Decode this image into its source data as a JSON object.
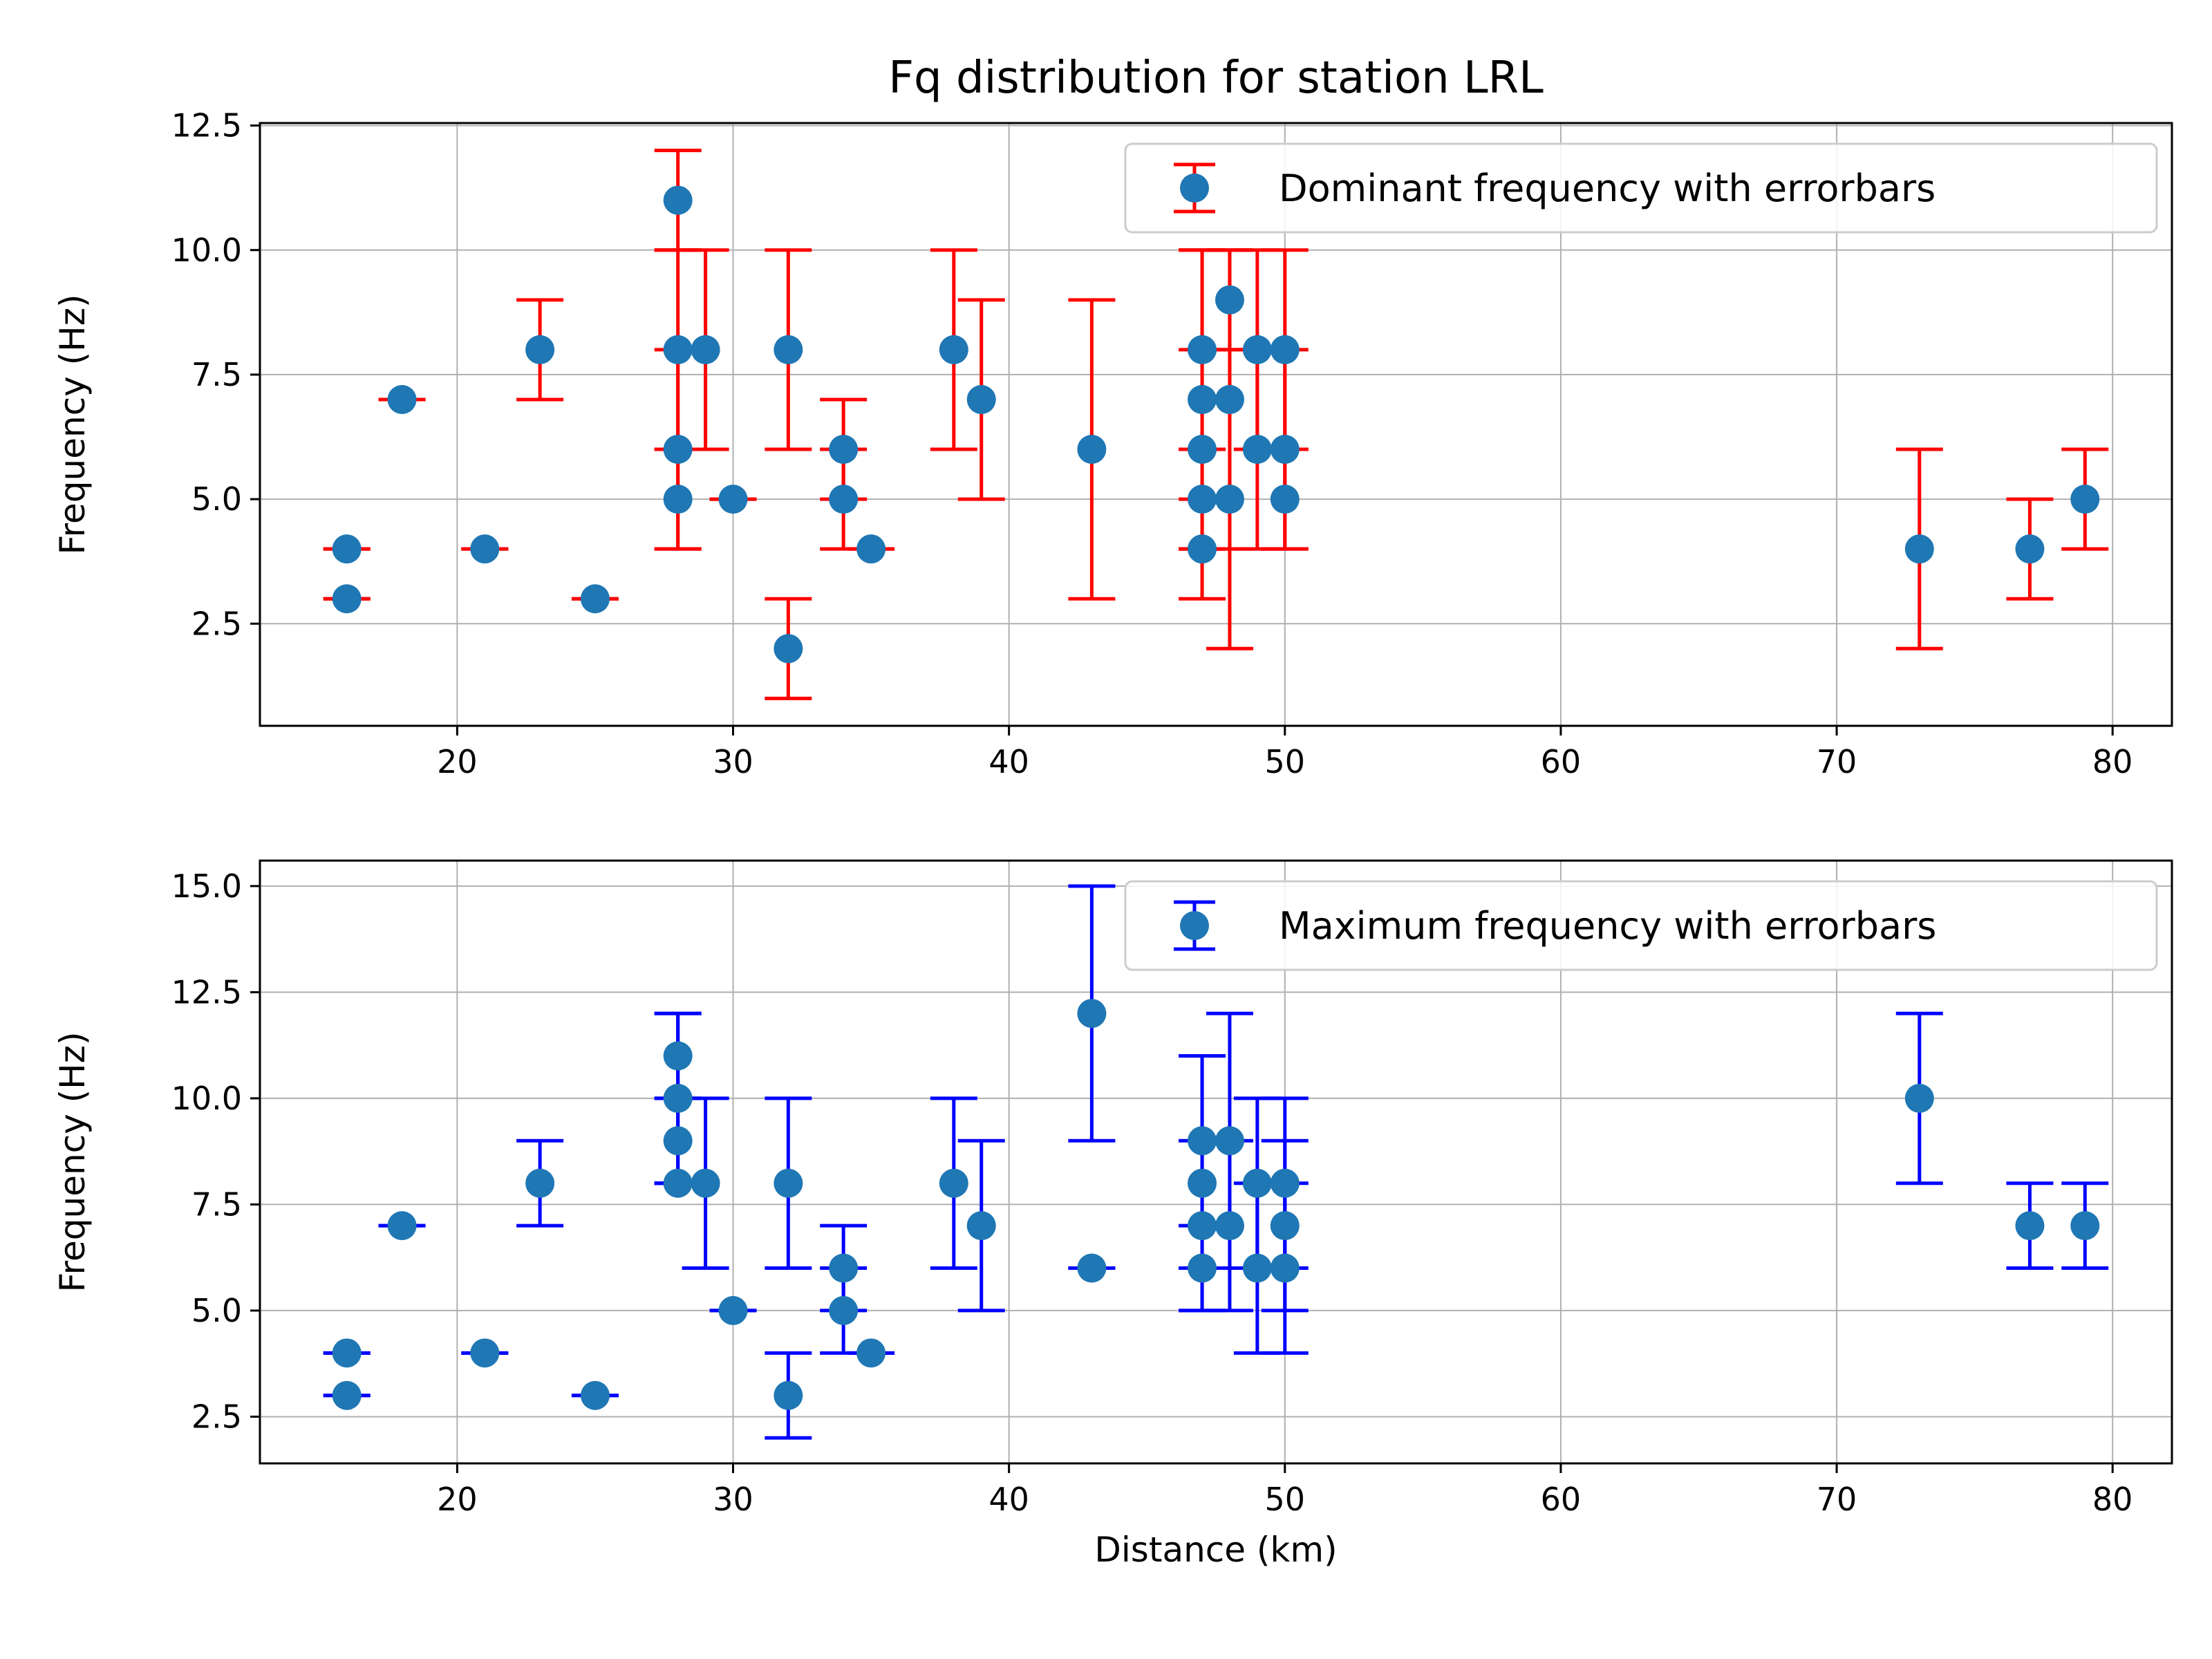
{
  "chart_data": [
    {
      "type": "scatter",
      "title": "Fq distribution for station LRL",
      "xlabel": "",
      "ylabel": "Frequency (Hz)",
      "xlim": [
        12.85,
        82.15
      ],
      "ylim": [
        0.45,
        12.55
      ],
      "xticks": [
        "20",
        "30",
        "40",
        "50",
        "60",
        "70",
        "80"
      ],
      "yticks": [
        "2.5",
        "5.0",
        "7.5",
        "10.0",
        "12.5"
      ],
      "grid": true,
      "legend_position": "top-right",
      "marker_color": "#1f77b4",
      "errorbar_color": "#ff0000",
      "series": [
        {
          "name": "Dominant frequency with errorbars",
          "points": [
            {
              "x": 16,
              "y": 4,
              "lo": 4,
              "hi": 4
            },
            {
              "x": 16,
              "y": 3,
              "lo": 3,
              "hi": 3
            },
            {
              "x": 18,
              "y": 7,
              "lo": 7,
              "hi": 7
            },
            {
              "x": 21,
              "y": 4,
              "lo": 4,
              "hi": 4
            },
            {
              "x": 23,
              "y": 8,
              "lo": 7,
              "hi": 9
            },
            {
              "x": 25,
              "y": 3,
              "lo": 3,
              "hi": 3
            },
            {
              "x": 28,
              "y": 11,
              "lo": 10,
              "hi": 12
            },
            {
              "x": 28,
              "y": 8,
              "lo": 6,
              "hi": 10
            },
            {
              "x": 28,
              "y": 6,
              "lo": 4,
              "hi": 8
            },
            {
              "x": 28,
              "y": 5,
              "lo": 4,
              "hi": 6
            },
            {
              "x": 29,
              "y": 8,
              "lo": 6,
              "hi": 10
            },
            {
              "x": 30,
              "y": 5,
              "lo": 5,
              "hi": 5
            },
            {
              "x": 32,
              "y": 8,
              "lo": 6,
              "hi": 10
            },
            {
              "x": 32,
              "y": 2,
              "lo": 1,
              "hi": 3
            },
            {
              "x": 34,
              "y": 6,
              "lo": 5,
              "hi": 7
            },
            {
              "x": 34,
              "y": 5,
              "lo": 4,
              "hi": 6
            },
            {
              "x": 35,
              "y": 4,
              "lo": 4,
              "hi": 4
            },
            {
              "x": 38,
              "y": 8,
              "lo": 6,
              "hi": 10
            },
            {
              "x": 39,
              "y": 7,
              "lo": 5,
              "hi": 9
            },
            {
              "x": 43,
              "y": 6,
              "lo": 3,
              "hi": 9
            },
            {
              "x": 47,
              "y": 8,
              "lo": 6,
              "hi": 10
            },
            {
              "x": 47,
              "y": 7,
              "lo": 4,
              "hi": 10
            },
            {
              "x": 47,
              "y": 6,
              "lo": 4,
              "hi": 8
            },
            {
              "x": 47,
              "y": 5,
              "lo": 4,
              "hi": 6
            },
            {
              "x": 47,
              "y": 4,
              "lo": 3,
              "hi": 5
            },
            {
              "x": 48,
              "y": 9,
              "lo": 8,
              "hi": 10
            },
            {
              "x": 48,
              "y": 7,
              "lo": 4,
              "hi": 10
            },
            {
              "x": 48,
              "y": 5,
              "lo": 2,
              "hi": 8
            },
            {
              "x": 49,
              "y": 8,
              "lo": 6,
              "hi": 10
            },
            {
              "x": 49,
              "y": 6,
              "lo": 4,
              "hi": 8
            },
            {
              "x": 50,
              "y": 8,
              "lo": 6,
              "hi": 10
            },
            {
              "x": 50,
              "y": 6,
              "lo": 4,
              "hi": 8
            },
            {
              "x": 50,
              "y": 5,
              "lo": 4,
              "hi": 6
            },
            {
              "x": 73,
              "y": 4,
              "lo": 2,
              "hi": 6
            },
            {
              "x": 77,
              "y": 4,
              "lo": 3,
              "hi": 5
            },
            {
              "x": 79,
              "y": 5,
              "lo": 4,
              "hi": 6
            }
          ]
        }
      ]
    },
    {
      "type": "scatter",
      "title": "",
      "xlabel": "Distance (km)",
      "ylabel": "Frequency (Hz)",
      "xlim": [
        12.85,
        82.15
      ],
      "ylim": [
        1.4,
        15.6
      ],
      "xticks": [
        "20",
        "30",
        "40",
        "50",
        "60",
        "70",
        "80"
      ],
      "yticks": [
        "2.5",
        "5.0",
        "7.5",
        "10.0",
        "12.5",
        "15.0"
      ],
      "grid": true,
      "legend_position": "top-right",
      "marker_color": "#1f77b4",
      "errorbar_color": "#0000ff",
      "series": [
        {
          "name": "Maximum frequency with errorbars",
          "points": [
            {
              "x": 16,
              "y": 4,
              "lo": 4,
              "hi": 4
            },
            {
              "x": 16,
              "y": 3,
              "lo": 3,
              "hi": 3
            },
            {
              "x": 18,
              "y": 7,
              "lo": 7,
              "hi": 7
            },
            {
              "x": 21,
              "y": 4,
              "lo": 4,
              "hi": 4
            },
            {
              "x": 23,
              "y": 8,
              "lo": 7,
              "hi": 9
            },
            {
              "x": 25,
              "y": 3,
              "lo": 3,
              "hi": 3
            },
            {
              "x": 28,
              "y": 11,
              "lo": 10,
              "hi": 12
            },
            {
              "x": 28,
              "y": 10,
              "lo": 8,
              "hi": 12
            },
            {
              "x": 28,
              "y": 9,
              "lo": 8,
              "hi": 10
            },
            {
              "x": 28,
              "y": 8,
              "lo": 8,
              "hi": 8
            },
            {
              "x": 29,
              "y": 8,
              "lo": 6,
              "hi": 10
            },
            {
              "x": 30,
              "y": 5,
              "lo": 5,
              "hi": 5
            },
            {
              "x": 32,
              "y": 8,
              "lo": 6,
              "hi": 10
            },
            {
              "x": 32,
              "y": 3,
              "lo": 2,
              "hi": 4
            },
            {
              "x": 34,
              "y": 6,
              "lo": 5,
              "hi": 7
            },
            {
              "x": 34,
              "y": 5,
              "lo": 4,
              "hi": 6
            },
            {
              "x": 35,
              "y": 4,
              "lo": 4,
              "hi": 4
            },
            {
              "x": 38,
              "y": 8,
              "lo": 6,
              "hi": 10
            },
            {
              "x": 39,
              "y": 7,
              "lo": 5,
              "hi": 9
            },
            {
              "x": 43,
              "y": 12,
              "lo": 9,
              "hi": 15
            },
            {
              "x": 43,
              "y": 6,
              "lo": 6,
              "hi": 6
            },
            {
              "x": 47,
              "y": 9,
              "lo": 7,
              "hi": 11
            },
            {
              "x": 47,
              "y": 8,
              "lo": 5,
              "hi": 11
            },
            {
              "x": 47,
              "y": 7,
              "lo": 5,
              "hi": 9
            },
            {
              "x": 47,
              "y": 6,
              "lo": 6,
              "hi": 6
            },
            {
              "x": 48,
              "y": 9,
              "lo": 6,
              "hi": 12
            },
            {
              "x": 48,
              "y": 7,
              "lo": 5,
              "hi": 9
            },
            {
              "x": 49,
              "y": 8,
              "lo": 6,
              "hi": 10
            },
            {
              "x": 49,
              "y": 6,
              "lo": 4,
              "hi": 8
            },
            {
              "x": 50,
              "y": 8,
              "lo": 6,
              "hi": 10
            },
            {
              "x": 50,
              "y": 7,
              "lo": 5,
              "hi": 9
            },
            {
              "x": 50,
              "y": 6,
              "lo": 4,
              "hi": 8
            },
            {
              "x": 73,
              "y": 10,
              "lo": 8,
              "hi": 12
            },
            {
              "x": 77,
              "y": 7,
              "lo": 6,
              "hi": 8
            },
            {
              "x": 79,
              "y": 7,
              "lo": 6,
              "hi": 8
            }
          ]
        }
      ]
    }
  ]
}
